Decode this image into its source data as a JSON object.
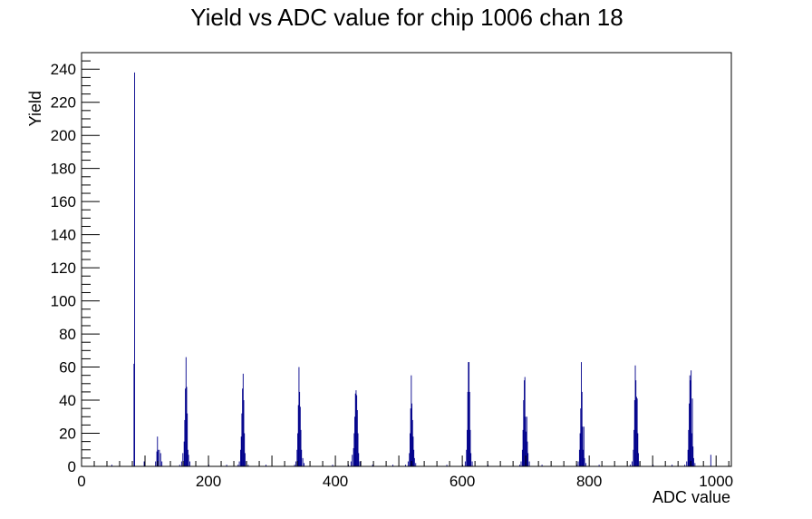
{
  "chart_data": {
    "type": "bar",
    "title": "Yield vs ADC value for chip 1006 chan 18",
    "xlabel": "ADC value",
    "ylabel": "Yield",
    "xlim": [
      0,
      1024
    ],
    "ylim": [
      0,
      250
    ],
    "x_ticks": [
      0,
      200,
      400,
      600,
      800,
      1000
    ],
    "y_ticks": [
      0,
      20,
      40,
      60,
      80,
      100,
      120,
      140,
      160,
      180,
      200,
      220,
      240
    ],
    "grid": false,
    "legend": "none",
    "line_color": "#00008b",
    "bins": [
      {
        "x": 47,
        "y": 1
      },
      {
        "x": 82,
        "y": 62
      },
      {
        "x": 83,
        "y": 238
      },
      {
        "x": 98,
        "y": 3
      },
      {
        "x": 116,
        "y": 3
      },
      {
        "x": 118,
        "y": 9
      },
      {
        "x": 119,
        "y": 18
      },
      {
        "x": 120,
        "y": 10
      },
      {
        "x": 122,
        "y": 10
      },
      {
        "x": 124,
        "y": 8
      },
      {
        "x": 126,
        "y": 3
      },
      {
        "x": 154,
        "y": 1
      },
      {
        "x": 157,
        "y": 3
      },
      {
        "x": 159,
        "y": 8
      },
      {
        "x": 161,
        "y": 15
      },
      {
        "x": 162,
        "y": 28
      },
      {
        "x": 163,
        "y": 47
      },
      {
        "x": 164,
        "y": 66
      },
      {
        "x": 165,
        "y": 48
      },
      {
        "x": 166,
        "y": 32
      },
      {
        "x": 167,
        "y": 10
      },
      {
        "x": 168,
        "y": 7
      },
      {
        "x": 170,
        "y": 3
      },
      {
        "x": 200,
        "y": 1
      },
      {
        "x": 228,
        "y": 1
      },
      {
        "x": 246,
        "y": 1
      },
      {
        "x": 248,
        "y": 3
      },
      {
        "x": 250,
        "y": 10
      },
      {
        "x": 251,
        "y": 18
      },
      {
        "x": 252,
        "y": 32
      },
      {
        "x": 253,
        "y": 47
      },
      {
        "x": 254,
        "y": 56
      },
      {
        "x": 255,
        "y": 40
      },
      {
        "x": 256,
        "y": 20
      },
      {
        "x": 257,
        "y": 8
      },
      {
        "x": 259,
        "y": 3
      },
      {
        "x": 262,
        "y": 1
      },
      {
        "x": 290,
        "y": 1
      },
      {
        "x": 335,
        "y": 1
      },
      {
        "x": 337,
        "y": 3
      },
      {
        "x": 339,
        "y": 10
      },
      {
        "x": 340,
        "y": 20
      },
      {
        "x": 341,
        "y": 37
      },
      {
        "x": 342,
        "y": 60
      },
      {
        "x": 343,
        "y": 45
      },
      {
        "x": 344,
        "y": 36
      },
      {
        "x": 345,
        "y": 22
      },
      {
        "x": 346,
        "y": 10
      },
      {
        "x": 348,
        "y": 5
      },
      {
        "x": 350,
        "y": 2
      },
      {
        "x": 395,
        "y": 1
      },
      {
        "x": 420,
        "y": 1
      },
      {
        "x": 424,
        "y": 3
      },
      {
        "x": 426,
        "y": 7
      },
      {
        "x": 428,
        "y": 11
      },
      {
        "x": 429,
        "y": 20
      },
      {
        "x": 430,
        "y": 30
      },
      {
        "x": 431,
        "y": 44
      },
      {
        "x": 432,
        "y": 46
      },
      {
        "x": 433,
        "y": 43
      },
      {
        "x": 434,
        "y": 34
      },
      {
        "x": 435,
        "y": 20
      },
      {
        "x": 436,
        "y": 8
      },
      {
        "x": 438,
        "y": 3
      },
      {
        "x": 458,
        "y": 1
      },
      {
        "x": 490,
        "y": 1
      },
      {
        "x": 510,
        "y": 1
      },
      {
        "x": 514,
        "y": 3
      },
      {
        "x": 516,
        "y": 8
      },
      {
        "x": 517,
        "y": 20
      },
      {
        "x": 518,
        "y": 35
      },
      {
        "x": 519,
        "y": 55
      },
      {
        "x": 520,
        "y": 38
      },
      {
        "x": 521,
        "y": 28
      },
      {
        "x": 522,
        "y": 18
      },
      {
        "x": 523,
        "y": 10
      },
      {
        "x": 524,
        "y": 5
      },
      {
        "x": 526,
        "y": 2
      },
      {
        "x": 575,
        "y": 1
      },
      {
        "x": 600,
        "y": 1
      },
      {
        "x": 604,
        "y": 3
      },
      {
        "x": 606,
        "y": 10
      },
      {
        "x": 607,
        "y": 22
      },
      {
        "x": 608,
        "y": 45
      },
      {
        "x": 609,
        "y": 63
      },
      {
        "x": 610,
        "y": 63
      },
      {
        "x": 611,
        "y": 45
      },
      {
        "x": 612,
        "y": 22
      },
      {
        "x": 613,
        "y": 8
      },
      {
        "x": 615,
        "y": 3
      },
      {
        "x": 640,
        "y": 1
      },
      {
        "x": 690,
        "y": 1
      },
      {
        "x": 692,
        "y": 3
      },
      {
        "x": 694,
        "y": 10
      },
      {
        "x": 695,
        "y": 22
      },
      {
        "x": 696,
        "y": 40
      },
      {
        "x": 697,
        "y": 52
      },
      {
        "x": 698,
        "y": 54
      },
      {
        "x": 699,
        "y": 30
      },
      {
        "x": 700,
        "y": 21
      },
      {
        "x": 701,
        "y": 30
      },
      {
        "x": 702,
        "y": 15
      },
      {
        "x": 703,
        "y": 8
      },
      {
        "x": 705,
        "y": 3
      },
      {
        "x": 725,
        "y": 1
      },
      {
        "x": 780,
        "y": 1
      },
      {
        "x": 782,
        "y": 3
      },
      {
        "x": 784,
        "y": 10
      },
      {
        "x": 785,
        "y": 20
      },
      {
        "x": 786,
        "y": 35
      },
      {
        "x": 787,
        "y": 63
      },
      {
        "x": 788,
        "y": 45
      },
      {
        "x": 789,
        "y": 24
      },
      {
        "x": 790,
        "y": 10
      },
      {
        "x": 791,
        "y": 24
      },
      {
        "x": 792,
        "y": 5
      },
      {
        "x": 794,
        "y": 2
      },
      {
        "x": 815,
        "y": 1
      },
      {
        "x": 864,
        "y": 1
      },
      {
        "x": 867,
        "y": 3
      },
      {
        "x": 869,
        "y": 10
      },
      {
        "x": 870,
        "y": 22
      },
      {
        "x": 871,
        "y": 40
      },
      {
        "x": 872,
        "y": 61
      },
      {
        "x": 873,
        "y": 52
      },
      {
        "x": 874,
        "y": 42
      },
      {
        "x": 875,
        "y": 41
      },
      {
        "x": 876,
        "y": 20
      },
      {
        "x": 877,
        "y": 8
      },
      {
        "x": 879,
        "y": 3
      },
      {
        "x": 900,
        "y": 1
      },
      {
        "x": 930,
        "y": 1
      },
      {
        "x": 950,
        "y": 1
      },
      {
        "x": 953,
        "y": 3
      },
      {
        "x": 955,
        "y": 10
      },
      {
        "x": 956,
        "y": 22
      },
      {
        "x": 957,
        "y": 38
      },
      {
        "x": 958,
        "y": 55
      },
      {
        "x": 959,
        "y": 52
      },
      {
        "x": 960,
        "y": 58
      },
      {
        "x": 961,
        "y": 20
      },
      {
        "x": 962,
        "y": 41
      },
      {
        "x": 963,
        "y": 12
      },
      {
        "x": 964,
        "y": 5
      },
      {
        "x": 966,
        "y": 2
      },
      {
        "x": 991,
        "y": 7
      }
    ]
  }
}
